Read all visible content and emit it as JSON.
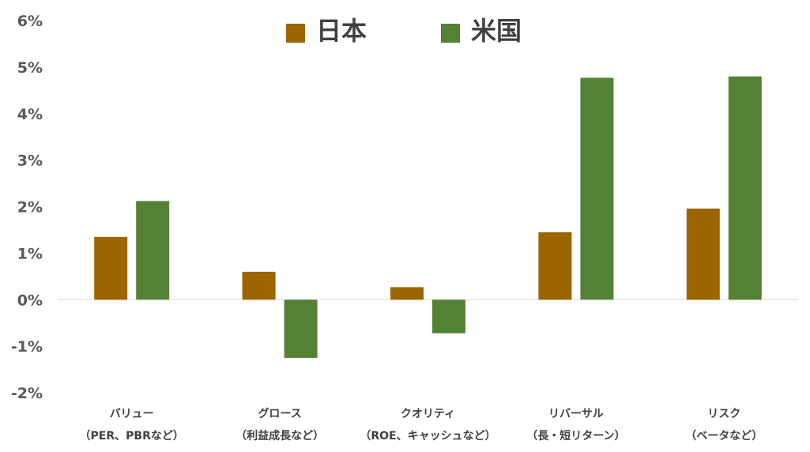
{
  "chart_data": {
    "type": "bar",
    "categories": [
      [
        "バリュー",
        "（PER、PBRなど）"
      ],
      [
        "グロース",
        "（利益成長など）"
      ],
      [
        "クオリティ",
        "（ROE、キャッシュなど）"
      ],
      [
        "リバーサル",
        "（長・短リターン）"
      ],
      [
        "リスク",
        "（ベータなど）"
      ]
    ],
    "series": [
      {
        "name": "日本",
        "color": "#9C6500",
        "values": [
          1.35,
          0.6,
          0.27,
          1.45,
          1.96
        ]
      },
      {
        "name": "米国",
        "color": "#548235",
        "values": [
          2.12,
          -1.25,
          -0.72,
          4.77,
          4.8
        ]
      }
    ],
    "ylim": [
      -2,
      6
    ],
    "yticks": [
      "-2%",
      "-1%",
      "0%",
      "1%",
      "2%",
      "3%",
      "4%",
      "5%",
      "6%"
    ],
    "legend_position": "top-center",
    "grid": false
  }
}
